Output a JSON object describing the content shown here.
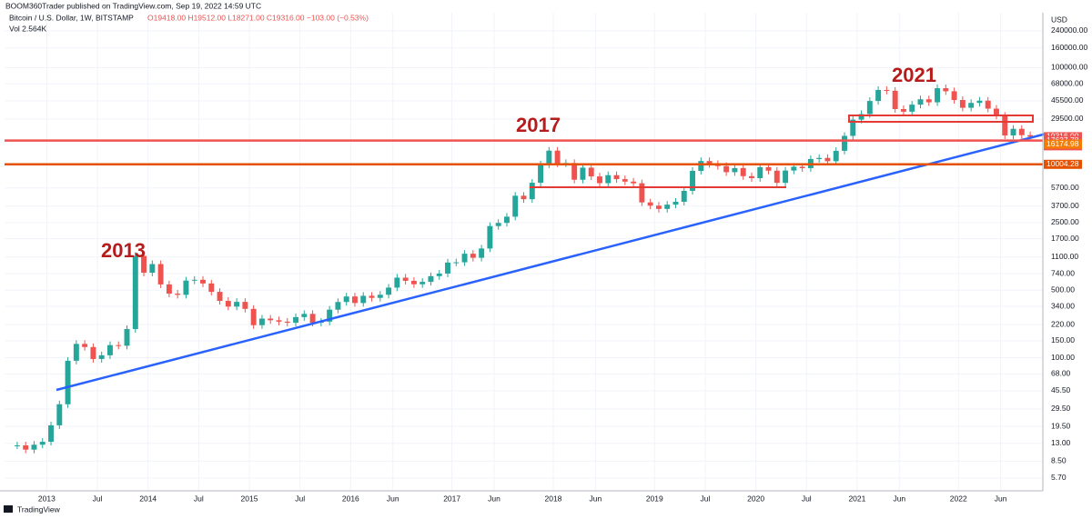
{
  "chart_data": {
    "type": "candlestick",
    "publisher": "BOOM360Trader published on TradingView.com, Sep 19, 2022 14:59 UTC",
    "symbol": "Bitcoin / U.S. Dollar, 1W, BITSTAMP",
    "ohlc": "O19418.00 H19512.00 L18271.00 C19316.00 −103.00 (−0.53%)",
    "volume_label": "Vol 2.564K",
    "currency": "USD",
    "footer": "TradingView",
    "annotations": [
      "2013",
      "2017",
      "2021"
    ],
    "log_scale": true,
    "grid": true,
    "up_color": "#26a69a",
    "down_color": "#ef5350",
    "x": [
      "2012-09",
      "2012-10",
      "2012-11",
      "2012-12",
      "2013-01",
      "2013-02",
      "2013-03",
      "2013-04",
      "2013-05",
      "2013-06",
      "2013-07",
      "2013-08",
      "2013-09",
      "2013-10",
      "2013-11",
      "2013-12",
      "2014-01",
      "2014-02",
      "2014-03",
      "2014-04",
      "2014-05",
      "2014-06",
      "2014-07",
      "2014-08",
      "2014-09",
      "2014-10",
      "2014-11",
      "2014-12",
      "2015-01",
      "2015-02",
      "2015-03",
      "2015-04",
      "2015-05",
      "2015-06",
      "2015-07",
      "2015-08",
      "2015-09",
      "2015-10",
      "2015-11",
      "2015-12",
      "2016-01",
      "2016-02",
      "2016-03",
      "2016-04",
      "2016-05",
      "2016-06",
      "2016-07",
      "2016-08",
      "2016-09",
      "2016-10",
      "2016-11",
      "2016-12",
      "2017-01",
      "2017-02",
      "2017-03",
      "2017-04",
      "2017-05",
      "2017-06",
      "2017-07",
      "2017-08",
      "2017-09",
      "2017-10",
      "2017-11",
      "2017-12",
      "2018-01",
      "2018-02",
      "2018-03",
      "2018-04",
      "2018-05",
      "2018-06",
      "2018-07",
      "2018-08",
      "2018-09",
      "2018-10",
      "2018-11",
      "2018-12",
      "2019-01",
      "2019-02",
      "2019-03",
      "2019-04",
      "2019-05",
      "2019-06",
      "2019-07",
      "2019-08",
      "2019-09",
      "2019-10",
      "2019-11",
      "2019-12",
      "2020-01",
      "2020-02",
      "2020-03",
      "2020-04",
      "2020-05",
      "2020-06",
      "2020-07",
      "2020-08",
      "2020-09",
      "2020-10",
      "2020-11",
      "2020-12",
      "2021-01",
      "2021-02",
      "2021-03",
      "2021-04",
      "2021-05",
      "2021-06",
      "2021-07",
      "2021-08",
      "2021-09",
      "2021-10",
      "2021-11",
      "2021-12",
      "2022-01",
      "2022-02",
      "2022-03",
      "2022-04",
      "2022-05",
      "2022-06",
      "2022-07",
      "2022-08",
      "2022-09"
    ],
    "values": [
      12.4,
      11.2,
      12.6,
      13.5,
      20,
      33,
      93,
      139,
      129,
      97,
      106,
      135,
      133,
      198,
      1130,
      757,
      930,
      573,
      460,
      447,
      628,
      640,
      586,
      480,
      387,
      338,
      378,
      320,
      217,
      254,
      244,
      236,
      230,
      263,
      284,
      230,
      236,
      314,
      377,
      430,
      368,
      437,
      416,
      448,
      531,
      673,
      624,
      575,
      609,
      698,
      742,
      964,
      970,
      1190,
      1080,
      1348,
      2300,
      2480,
      2875,
      4735,
      4360,
      6450,
      10000,
      13860,
      10220,
      10320,
      6930,
      9240,
      7500,
      6390,
      7730,
      7030,
      6630,
      6370,
      4040,
      3740,
      3460,
      3830,
      4100,
      5320,
      8560,
      10820,
      10080,
      9600,
      8300,
      9150,
      7550,
      7200,
      9350,
      8600,
      6440,
      8630,
      9450,
      9140,
      11350,
      11650,
      10780,
      13800,
      19700,
      28990,
      33110,
      45240,
      58800,
      57750,
      37300,
      35040,
      41460,
      47100,
      43820,
      61300,
      57000,
      46300,
      38480,
      43190,
      45540,
      37700,
      31800,
      19900,
      23300,
      20050,
      19316
    ],
    "xticks": [
      {
        "value": "2013-01",
        "label": "2013"
      },
      {
        "value": "2013-07",
        "label": "Jul"
      },
      {
        "value": "2014-01",
        "label": "2014"
      },
      {
        "value": "2014-07",
        "label": "Jul"
      },
      {
        "value": "2015-01",
        "label": "2015"
      },
      {
        "value": "2015-07",
        "label": "Jul"
      },
      {
        "value": "2016-01",
        "label": "2016"
      },
      {
        "value": "2016-06",
        "label": "Jun"
      },
      {
        "value": "2017-01",
        "label": "2017"
      },
      {
        "value": "2017-06",
        "label": "Jun"
      },
      {
        "value": "2018-01",
        "label": "2018"
      },
      {
        "value": "2018-06",
        "label": "Jun"
      },
      {
        "value": "2019-01",
        "label": "2019"
      },
      {
        "value": "2019-07",
        "label": "Jul"
      },
      {
        "value": "2020-01",
        "label": "2020"
      },
      {
        "value": "2020-07",
        "label": "Jul"
      },
      {
        "value": "2021-01",
        "label": "2021"
      },
      {
        "value": "2021-06",
        "label": "Jun"
      },
      {
        "value": "2022-01",
        "label": "2022"
      },
      {
        "value": "2022-06",
        "label": "Jun"
      }
    ],
    "xlim": [
      "2012-08",
      "2022-11"
    ],
    "ylim": [
      4.2,
      370000
    ],
    "yticks": [
      {
        "value": 240000,
        "label": "240000.00"
      },
      {
        "value": 160000,
        "label": "160000.00"
      },
      {
        "value": 100000,
        "label": "100000.00"
      },
      {
        "value": 68000,
        "label": "68000.00"
      },
      {
        "value": 45500,
        "label": "45500.00"
      },
      {
        "value": 29500,
        "label": "29500.00"
      },
      {
        "value": 5700,
        "label": "5700.00"
      },
      {
        "value": 3700,
        "label": "3700.00"
      },
      {
        "value": 2500,
        "label": "2500.00"
      },
      {
        "value": 1700,
        "label": "1700.00"
      },
      {
        "value": 1100,
        "label": "1100.00"
      },
      {
        "value": 740,
        "label": "740.00"
      },
      {
        "value": 500,
        "label": "500.00"
      },
      {
        "value": 340,
        "label": "340.00"
      },
      {
        "value": 220,
        "label": "220.00"
      },
      {
        "value": 150,
        "label": "150.00"
      },
      {
        "value": 100,
        "label": "100.00"
      },
      {
        "value": 68,
        "label": "68.00"
      },
      {
        "value": 45.5,
        "label": "45.50"
      },
      {
        "value": 29.5,
        "label": "29.50"
      },
      {
        "value": 19.5,
        "label": "19.50"
      },
      {
        "value": 13,
        "label": "13.00"
      },
      {
        "value": 8.5,
        "label": "8.50"
      },
      {
        "value": 5.7,
        "label": "5.70"
      }
    ],
    "price_labels": [
      {
        "value": 19316,
        "label": "19316.00",
        "sub": "6d 10h",
        "color": "#ef5350"
      },
      {
        "value": 17637.78,
        "label": "17637.78",
        "color": "#ef5350",
        "level": true
      },
      {
        "value": 16174.98,
        "label": "16174.98",
        "color": "#f57c00"
      },
      {
        "value": 10004.28,
        "label": "10004.28",
        "color": "#e65100",
        "level": true
      }
    ]
  }
}
